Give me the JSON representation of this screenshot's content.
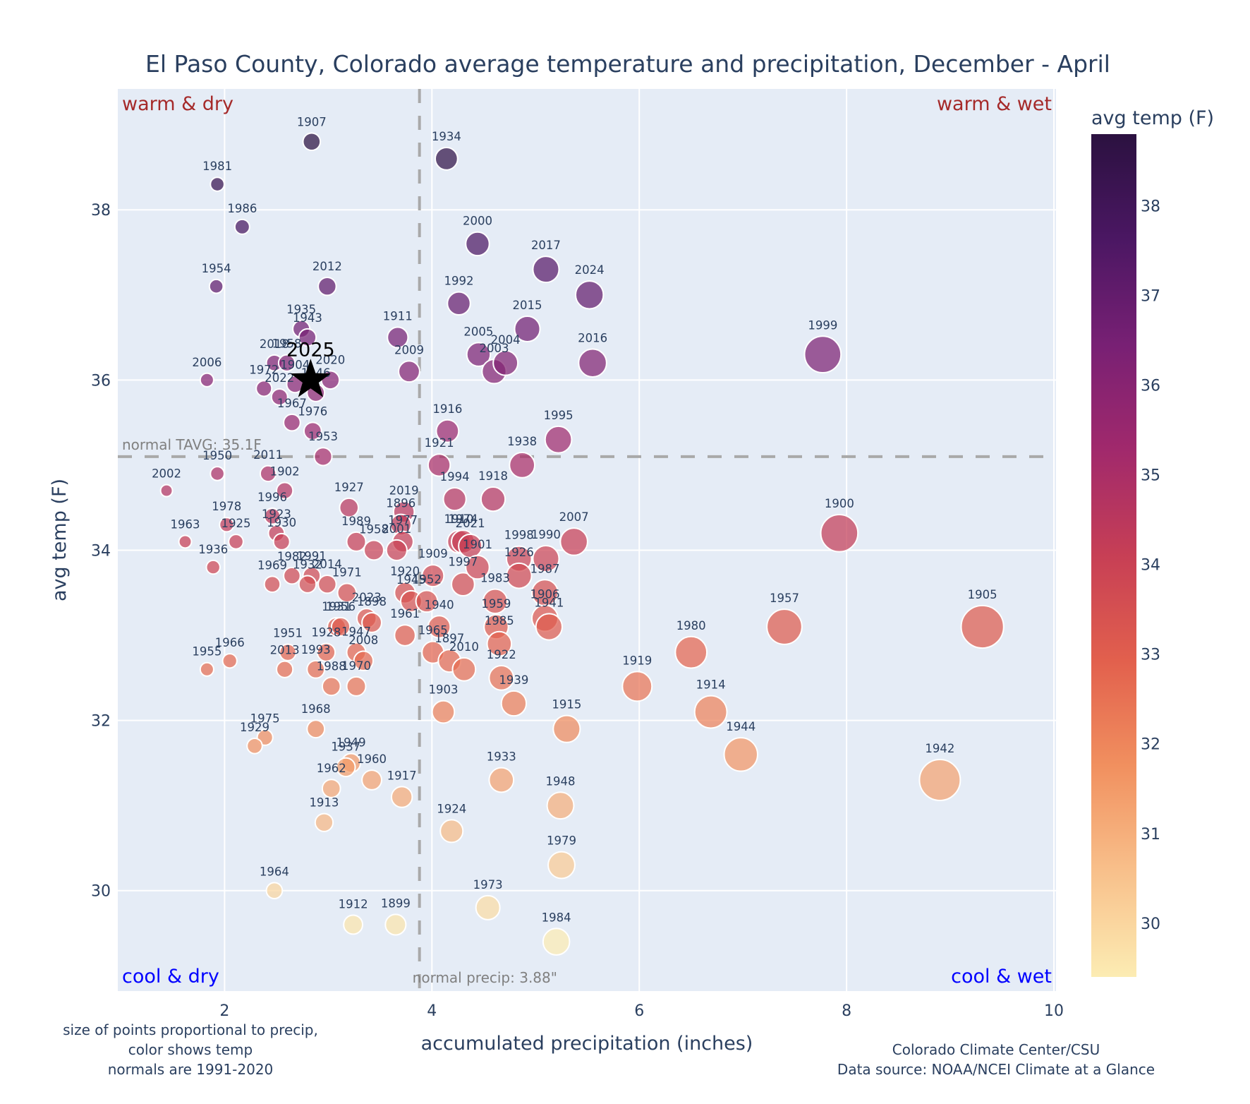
{
  "chart_data": {
    "type": "scatter",
    "title": "El Paso County, Colorado average temperature and precipitation, December - April",
    "xlabel": "accumulated precipitation (inches)",
    "ylabel": "avg temp (F)",
    "xlim": [
      0.97,
      10.02
    ],
    "ylim": [
      28.82,
      39.42
    ],
    "xticks": [
      2,
      4,
      6,
      8,
      10
    ],
    "yticks": [
      30,
      32,
      34,
      36,
      38
    ],
    "grid": true,
    "colorbar": {
      "title": "avg temp (F)",
      "range": [
        29.4,
        38.8
      ],
      "ticks": [
        30,
        31,
        32,
        33,
        34,
        35,
        36,
        37,
        38
      ],
      "colorscale": [
        "#fcecb3",
        "#f8c08b",
        "#f1905f",
        "#e2604d",
        "#c73f55",
        "#a1296c",
        "#782074",
        "#4b1763",
        "#2b1140"
      ]
    },
    "reference_lines": {
      "normal_temp": {
        "value": 35.1,
        "label": "normal TAVG: 35.1F"
      },
      "normal_precip": {
        "value": 3.88,
        "label": "normal precip: 3.88\""
      }
    },
    "quadrant_labels": {
      "top_left": "warm & dry",
      "top_right": "warm & wet",
      "bottom_left": "cool & dry",
      "bottom_right": "cool & wet"
    },
    "highlight": {
      "label": "2025",
      "x": 2.83,
      "y": 36.0,
      "marker": "star"
    },
    "notes": {
      "left": [
        "size of points proportional to precip,",
        "color shows temp",
        "normals are 1991-2020"
      ],
      "right": [
        "Colorado Climate Center/CSU",
        "Data source: NOAA/NCEI Climate at a Glance"
      ]
    },
    "points": [
      {
        "year": "1907",
        "x": 2.84,
        "y": 38.8
      },
      {
        "year": "1981",
        "x": 1.93,
        "y": 38.3
      },
      {
        "year": "1986",
        "x": 2.17,
        "y": 37.8
      },
      {
        "year": "1954",
        "x": 1.92,
        "y": 37.1
      },
      {
        "year": "2012",
        "x": 2.99,
        "y": 37.1
      },
      {
        "year": "1935",
        "x": 2.74,
        "y": 36.6
      },
      {
        "year": "1943",
        "x": 2.8,
        "y": 36.5
      },
      {
        "year": "2018",
        "x": 2.48,
        "y": 36.2
      },
      {
        "year": "1958",
        "x": 2.6,
        "y": 36.2
      },
      {
        "year": "2006",
        "x": 1.83,
        "y": 36.0
      },
      {
        "year": "1972",
        "x": 2.38,
        "y": 35.9
      },
      {
        "year": "1904",
        "x": 2.68,
        "y": 35.95
      },
      {
        "year": "2022",
        "x": 2.53,
        "y": 35.8
      },
      {
        "year": "2020",
        "x": 3.02,
        "y": 36.0
      },
      {
        "year": "1946",
        "x": 2.88,
        "y": 35.85
      },
      {
        "year": "1967",
        "x": 2.65,
        "y": 35.5
      },
      {
        "year": "1976",
        "x": 2.85,
        "y": 35.4
      },
      {
        "year": "1953",
        "x": 2.95,
        "y": 35.1
      },
      {
        "year": "1950",
        "x": 1.93,
        "y": 34.9
      },
      {
        "year": "2011",
        "x": 2.42,
        "y": 34.9
      },
      {
        "year": "1902",
        "x": 2.58,
        "y": 34.7
      },
      {
        "year": "2002",
        "x": 1.44,
        "y": 34.7
      },
      {
        "year": "1996",
        "x": 2.46,
        "y": 34.4
      },
      {
        "year": "1978",
        "x": 2.02,
        "y": 34.3
      },
      {
        "year": "1923",
        "x": 2.5,
        "y": 34.2
      },
      {
        "year": "1930",
        "x": 2.55,
        "y": 34.1
      },
      {
        "year": "1925",
        "x": 2.11,
        "y": 34.1
      },
      {
        "year": "1963",
        "x": 1.62,
        "y": 34.1
      },
      {
        "year": "1936",
        "x": 1.89,
        "y": 33.8
      },
      {
        "year": "1969",
        "x": 2.46,
        "y": 33.6
      },
      {
        "year": "1982",
        "x": 2.65,
        "y": 33.7
      },
      {
        "year": "1991",
        "x": 2.84,
        "y": 33.7
      },
      {
        "year": "1932",
        "x": 2.8,
        "y": 33.6
      },
      {
        "year": "2014",
        "x": 2.99,
        "y": 33.6
      },
      {
        "year": "1971",
        "x": 3.18,
        "y": 33.5
      },
      {
        "year": "1927",
        "x": 3.2,
        "y": 34.5
      },
      {
        "year": "1989",
        "x": 3.27,
        "y": 34.1
      },
      {
        "year": "1958",
        "x": 3.44,
        "y": 34.0
      },
      {
        "year": "2019",
        "x": 3.73,
        "y": 34.45
      },
      {
        "year": "1896",
        "x": 3.7,
        "y": 34.3
      },
      {
        "year": "1977",
        "x": 3.72,
        "y": 34.1
      },
      {
        "year": "2001",
        "x": 3.66,
        "y": 34.0
      },
      {
        "year": "2023",
        "x": 3.37,
        "y": 33.2
      },
      {
        "year": "1931",
        "x": 3.08,
        "y": 33.1
      },
      {
        "year": "1956",
        "x": 3.12,
        "y": 33.1
      },
      {
        "year": "1898",
        "x": 3.42,
        "y": 33.15
      },
      {
        "year": "1951",
        "x": 2.61,
        "y": 32.8
      },
      {
        "year": "1928",
        "x": 2.98,
        "y": 32.8
      },
      {
        "year": "1947",
        "x": 3.27,
        "y": 32.8
      },
      {
        "year": "2008",
        "x": 3.34,
        "y": 32.7
      },
      {
        "year": "2013",
        "x": 2.58,
        "y": 32.6
      },
      {
        "year": "1993",
        "x": 2.88,
        "y": 32.6
      },
      {
        "year": "1988",
        "x": 3.03,
        "y": 32.4
      },
      {
        "year": "1970",
        "x": 3.27,
        "y": 32.4
      },
      {
        "year": "1966",
        "x": 2.05,
        "y": 32.7
      },
      {
        "year": "1955",
        "x": 1.83,
        "y": 32.6
      },
      {
        "year": "1968",
        "x": 2.88,
        "y": 31.9
      },
      {
        "year": "1975",
        "x": 2.39,
        "y": 31.8
      },
      {
        "year": "1929",
        "x": 2.29,
        "y": 31.7
      },
      {
        "year": "1949",
        "x": 3.22,
        "y": 31.5
      },
      {
        "year": "1937",
        "x": 3.17,
        "y": 31.45
      },
      {
        "year": "1962",
        "x": 3.03,
        "y": 31.2
      },
      {
        "year": "1960",
        "x": 3.42,
        "y": 31.3
      },
      {
        "year": "1917",
        "x": 3.71,
        "y": 31.1
      },
      {
        "year": "1913",
        "x": 2.96,
        "y": 30.8
      },
      {
        "year": "1964",
        "x": 2.48,
        "y": 30.0
      },
      {
        "year": "1912",
        "x": 3.24,
        "y": 29.6
      },
      {
        "year": "1899",
        "x": 3.65,
        "y": 29.6
      },
      {
        "year": "1920",
        "x": 3.74,
        "y": 33.5
      },
      {
        "year": "1945",
        "x": 3.8,
        "y": 33.4
      },
      {
        "year": "1952",
        "x": 3.95,
        "y": 33.4
      },
      {
        "year": "1961",
        "x": 3.74,
        "y": 33.0
      },
      {
        "year": "1909",
        "x": 4.01,
        "y": 33.7
      },
      {
        "year": "1940",
        "x": 4.07,
        "y": 33.1
      },
      {
        "year": "1965",
        "x": 4.01,
        "y": 32.8
      },
      {
        "year": "1897",
        "x": 4.17,
        "y": 32.7
      },
      {
        "year": "2010",
        "x": 4.31,
        "y": 32.6
      },
      {
        "year": "1903",
        "x": 4.11,
        "y": 32.1
      },
      {
        "year": "1924",
        "x": 4.19,
        "y": 30.7
      },
      {
        "year": "1934",
        "x": 4.14,
        "y": 38.6
      },
      {
        "year": "2000",
        "x": 4.44,
        "y": 37.6
      },
      {
        "year": "1992",
        "x": 4.26,
        "y": 36.9
      },
      {
        "year": "1911",
        "x": 3.67,
        "y": 36.5
      },
      {
        "year": "2009",
        "x": 3.78,
        "y": 36.1
      },
      {
        "year": "2005",
        "x": 4.45,
        "y": 36.3
      },
      {
        "year": "2003",
        "x": 4.6,
        "y": 36.1
      },
      {
        "year": "2004",
        "x": 4.71,
        "y": 36.2
      },
      {
        "year": "2015",
        "x": 4.92,
        "y": 36.6
      },
      {
        "year": "2017",
        "x": 5.1,
        "y": 37.3
      },
      {
        "year": "2024",
        "x": 5.52,
        "y": 37.0
      },
      {
        "year": "2016",
        "x": 5.55,
        "y": 36.2
      },
      {
        "year": "1999",
        "x": 7.77,
        "y": 36.3
      },
      {
        "year": "1916",
        "x": 4.15,
        "y": 35.4
      },
      {
        "year": "1921",
        "x": 4.07,
        "y": 35.0
      },
      {
        "year": "1938",
        "x": 4.87,
        "y": 35.0
      },
      {
        "year": "1995",
        "x": 5.22,
        "y": 35.3
      },
      {
        "year": "1994",
        "x": 4.22,
        "y": 34.6
      },
      {
        "year": "1918",
        "x": 4.59,
        "y": 34.6
      },
      {
        "year": "1910",
        "x": 4.26,
        "y": 34.1
      },
      {
        "year": "1974",
        "x": 4.3,
        "y": 34.1
      },
      {
        "year": "2021",
        "x": 4.37,
        "y": 34.05
      },
      {
        "year": "1997",
        "x": 4.3,
        "y": 33.6
      },
      {
        "year": "1901",
        "x": 4.44,
        "y": 33.8
      },
      {
        "year": "1998",
        "x": 4.84,
        "y": 33.9
      },
      {
        "year": "1990",
        "x": 5.1,
        "y": 33.9
      },
      {
        "year": "2007",
        "x": 5.37,
        "y": 34.1
      },
      {
        "year": "1926",
        "x": 4.84,
        "y": 33.7
      },
      {
        "year": "1987",
        "x": 5.09,
        "y": 33.5
      },
      {
        "year": "1906",
        "x": 5.09,
        "y": 33.2
      },
      {
        "year": "1941",
        "x": 5.13,
        "y": 33.1
      },
      {
        "year": "1983",
        "x": 4.61,
        "y": 33.4
      },
      {
        "year": "1959",
        "x": 4.62,
        "y": 33.1
      },
      {
        "year": "1985",
        "x": 4.65,
        "y": 32.9
      },
      {
        "year": "1922",
        "x": 4.67,
        "y": 32.5
      },
      {
        "year": "1939",
        "x": 4.79,
        "y": 32.2
      },
      {
        "year": "1915",
        "x": 5.3,
        "y": 31.9
      },
      {
        "year": "1933",
        "x": 4.67,
        "y": 31.3
      },
      {
        "year": "1948",
        "x": 5.24,
        "y": 31.0
      },
      {
        "year": "1979",
        "x": 5.25,
        "y": 30.3
      },
      {
        "year": "1973",
        "x": 4.54,
        "y": 29.8
      },
      {
        "year": "1984",
        "x": 5.2,
        "y": 29.4
      },
      {
        "year": "1919",
        "x": 5.98,
        "y": 32.4
      },
      {
        "year": "1980",
        "x": 6.5,
        "y": 32.8
      },
      {
        "year": "1914",
        "x": 6.69,
        "y": 32.1
      },
      {
        "year": "1944",
        "x": 6.98,
        "y": 31.6
      },
      {
        "year": "1957",
        "x": 7.4,
        "y": 33.1
      },
      {
        "year": "1900",
        "x": 7.93,
        "y": 34.2
      },
      {
        "year": "1905",
        "x": 9.31,
        "y": 33.1
      },
      {
        "year": "1942",
        "x": 8.9,
        "y": 31.3
      }
    ]
  }
}
